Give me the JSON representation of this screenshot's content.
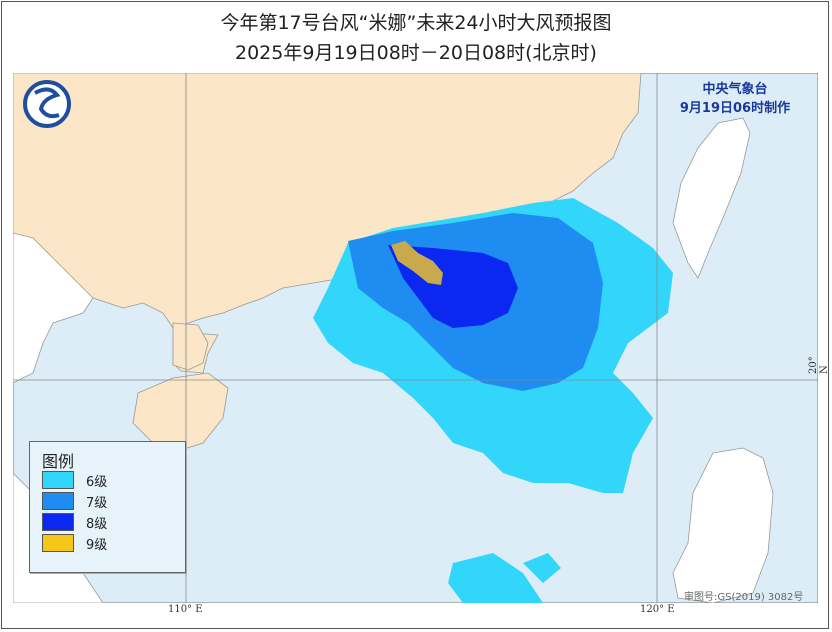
{
  "header": {
    "title": "今年第17号台风“米娜”未来24小时大风预报图",
    "subtitle": "2025年9月19日08时－20日08时(北京时)"
  },
  "agency": {
    "name": "中央气象台",
    "issued": "9月19日06时制作"
  },
  "legend": {
    "title": "图例",
    "items": [
      {
        "label": "6级",
        "color": "#33d6fb"
      },
      {
        "label": "7级",
        "color": "#1e8cf0"
      },
      {
        "label": "8级",
        "color": "#0a28f0"
      },
      {
        "label": "9级",
        "color": "#f5c518"
      }
    ]
  },
  "axes": {
    "lon_ticks": [
      "110° E",
      "120° E"
    ],
    "lat_ticks": [
      "20° N"
    ]
  },
  "colors": {
    "sea": "#dcedf8",
    "land": "#fce6c8",
    "foreign_land": "#ffffff",
    "zone_9_on_map": "#c9a94e"
  },
  "approval_number": "审图号:GS(2019) 3082号"
}
